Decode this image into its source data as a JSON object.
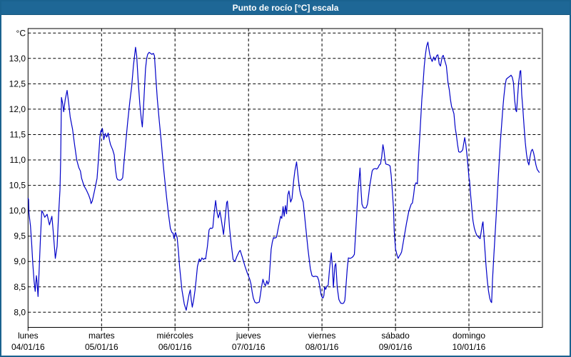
{
  "title": "Punto de rocío [°C] escala",
  "colors": {
    "titlebar_bg": "#1e6796",
    "window_border": "#1a628f",
    "line": "#0101c8",
    "grid": "#000000",
    "text": "#000000",
    "plot_bg": "#ffffff"
  },
  "y_axis": {
    "unit_label": "°C",
    "tick_labels": [
      "8,0",
      "8,5",
      "9,0",
      "9,5",
      "10,0",
      "10,5",
      "11,0",
      "11,5",
      "12,0",
      "12,5",
      "13,0"
    ],
    "tick_values": [
      8.0,
      8.5,
      9.0,
      9.5,
      10.0,
      10.5,
      11.0,
      11.5,
      12.0,
      12.5,
      13.0
    ]
  },
  "x_axis": {
    "days": [
      {
        "name": "lunes",
        "date": "04/01/16"
      },
      {
        "name": "martes",
        "date": "05/01/16"
      },
      {
        "name": "miércoles",
        "date": "06/01/16"
      },
      {
        "name": "jueves",
        "date": "07/01/16"
      },
      {
        "name": "viernes",
        "date": "08/01/16"
      },
      {
        "name": "sábado",
        "date": "09/01/16"
      },
      {
        "name": "domingo",
        "date": "10/01/16"
      }
    ]
  },
  "chart_data": {
    "type": "line",
    "title": "Punto de rocío [°C] escala",
    "series_name": "Punto de rocío",
    "x_unit": "días desde 04/01/16 00:00",
    "y_unit": "°C",
    "ylim": [
      8.0,
      13.5
    ],
    "xlim_days": [
      0,
      7
    ],
    "grid": "dashed",
    "legend": "none",
    "points": [
      [
        0.0,
        10.25
      ],
      [
        0.007,
        10.22
      ],
      [
        0.012,
        9.96
      ],
      [
        0.033,
        9.7
      ],
      [
        0.049,
        9.37
      ],
      [
        0.065,
        8.95
      ],
      [
        0.082,
        8.62
      ],
      [
        0.097,
        8.41
      ],
      [
        0.114,
        8.72
      ],
      [
        0.123,
        8.58
      ],
      [
        0.136,
        8.31
      ],
      [
        0.152,
        8.85
      ],
      [
        0.167,
        9.4
      ],
      [
        0.186,
        10.0
      ],
      [
        0.206,
        9.95
      ],
      [
        0.227,
        9.87
      ],
      [
        0.259,
        9.93
      ],
      [
        0.291,
        9.72
      ],
      [
        0.324,
        9.89
      ],
      [
        0.342,
        9.6
      ],
      [
        0.371,
        9.06
      ],
      [
        0.395,
        9.3
      ],
      [
        0.415,
        9.9
      ],
      [
        0.434,
        10.4
      ],
      [
        0.444,
        11.0
      ],
      [
        0.455,
        12.23
      ],
      [
        0.473,
        12.1
      ],
      [
        0.485,
        11.95
      ],
      [
        0.507,
        12.2
      ],
      [
        0.531,
        12.37
      ],
      [
        0.555,
        12.1
      ],
      [
        0.573,
        11.85
      ],
      [
        0.606,
        11.6
      ],
      [
        0.633,
        11.3
      ],
      [
        0.662,
        11.0
      ],
      [
        0.691,
        10.85
      ],
      [
        0.713,
        10.78
      ],
      [
        0.728,
        10.64
      ],
      [
        0.761,
        10.49
      ],
      [
        0.793,
        10.41
      ],
      [
        0.825,
        10.31
      ],
      [
        0.847,
        10.22
      ],
      [
        0.858,
        10.14
      ],
      [
        0.874,
        10.19
      ],
      [
        0.907,
        10.41
      ],
      [
        0.939,
        10.64
      ],
      [
        0.958,
        11.0
      ],
      [
        0.978,
        11.45
      ],
      [
        0.992,
        11.58
      ],
      [
        1.0,
        11.55
      ],
      [
        1.012,
        11.62
      ],
      [
        1.031,
        11.4
      ],
      [
        1.05,
        11.52
      ],
      [
        1.07,
        11.45
      ],
      [
        1.091,
        11.53
      ],
      [
        1.109,
        11.38
      ],
      [
        1.123,
        11.3
      ],
      [
        1.152,
        11.2
      ],
      [
        1.172,
        11.1
      ],
      [
        1.191,
        10.8
      ],
      [
        1.206,
        10.65
      ],
      [
        1.22,
        10.61
      ],
      [
        1.249,
        10.6
      ],
      [
        1.269,
        10.61
      ],
      [
        1.288,
        10.65
      ],
      [
        1.308,
        11.0
      ],
      [
        1.327,
        11.3
      ],
      [
        1.356,
        11.75
      ],
      [
        1.385,
        12.15
      ],
      [
        1.41,
        12.45
      ],
      [
        1.434,
        12.85
      ],
      [
        1.453,
        13.1
      ],
      [
        1.463,
        13.22
      ],
      [
        1.478,
        13.05
      ],
      [
        1.497,
        12.6
      ],
      [
        1.521,
        12.1
      ],
      [
        1.541,
        11.8
      ],
      [
        1.555,
        11.65
      ],
      [
        1.57,
        12.0
      ],
      [
        1.584,
        12.4
      ],
      [
        1.599,
        12.8
      ],
      [
        1.614,
        13.0
      ],
      [
        1.628,
        13.08
      ],
      [
        1.647,
        13.12
      ],
      [
        1.667,
        13.1
      ],
      [
        1.686,
        13.08
      ],
      [
        1.706,
        13.1
      ],
      [
        1.72,
        13.05
      ],
      [
        1.738,
        12.65
      ],
      [
        1.759,
        12.2
      ],
      [
        1.786,
        11.76
      ],
      [
        1.813,
        11.35
      ],
      [
        1.837,
        10.95
      ],
      [
        1.861,
        10.6
      ],
      [
        1.886,
        10.25
      ],
      [
        1.91,
        9.95
      ],
      [
        1.937,
        9.65
      ],
      [
        1.958,
        9.57
      ],
      [
        1.973,
        9.56
      ],
      [
        1.987,
        9.45
      ],
      [
        2.0,
        9.55
      ],
      [
        2.007,
        9.57
      ],
      [
        2.029,
        9.47
      ],
      [
        2.046,
        9.2
      ],
      [
        2.062,
        8.9
      ],
      [
        2.094,
        8.44
      ],
      [
        2.126,
        8.16
      ],
      [
        2.152,
        8.04
      ],
      [
        2.172,
        8.2
      ],
      [
        2.191,
        8.35
      ],
      [
        2.208,
        8.44
      ],
      [
        2.22,
        8.25
      ],
      [
        2.235,
        8.1
      ],
      [
        2.254,
        8.25
      ],
      [
        2.272,
        8.43
      ],
      [
        2.288,
        8.65
      ],
      [
        2.305,
        8.9
      ],
      [
        2.33,
        9.05
      ],
      [
        2.347,
        9.0
      ],
      [
        2.366,
        9.07
      ],
      [
        2.386,
        9.04
      ],
      [
        2.405,
        9.06
      ],
      [
        2.417,
        9.05
      ],
      [
        2.441,
        9.3
      ],
      [
        2.463,
        9.62
      ],
      [
        2.482,
        9.66
      ],
      [
        2.502,
        9.65
      ],
      [
        2.515,
        9.67
      ],
      [
        2.531,
        9.93
      ],
      [
        2.553,
        10.2
      ],
      [
        2.573,
        9.96
      ],
      [
        2.589,
        9.86
      ],
      [
        2.612,
        9.98
      ],
      [
        2.628,
        9.84
      ],
      [
        2.66,
        9.53
      ],
      [
        2.682,
        9.85
      ],
      [
        2.703,
        10.16
      ],
      [
        2.713,
        10.19
      ],
      [
        2.73,
        9.9
      ],
      [
        2.742,
        9.66
      ],
      [
        2.764,
        9.35
      ],
      [
        2.79,
        9.04
      ],
      [
        2.816,
        9.0
      ],
      [
        2.842,
        9.1
      ],
      [
        2.871,
        9.19
      ],
      [
        2.887,
        9.22
      ],
      [
        2.919,
        9.07
      ],
      [
        2.951,
        8.91
      ],
      [
        2.984,
        8.77
      ],
      [
        3.0,
        8.71
      ],
      [
        3.017,
        8.65
      ],
      [
        3.033,
        8.56
      ],
      [
        3.05,
        8.4
      ],
      [
        3.065,
        8.28
      ],
      [
        3.087,
        8.2
      ],
      [
        3.107,
        8.18
      ],
      [
        3.128,
        8.19
      ],
      [
        3.146,
        8.2
      ],
      [
        3.162,
        8.35
      ],
      [
        3.177,
        8.5
      ],
      [
        3.196,
        8.65
      ],
      [
        3.216,
        8.55
      ],
      [
        3.23,
        8.52
      ],
      [
        3.25,
        8.62
      ],
      [
        3.264,
        8.55
      ],
      [
        3.279,
        8.6
      ],
      [
        3.308,
        9.24
      ],
      [
        3.324,
        9.38
      ],
      [
        3.34,
        9.47
      ],
      [
        3.361,
        9.46
      ],
      [
        3.381,
        9.48
      ],
      [
        3.405,
        9.66
      ],
      [
        3.437,
        9.89
      ],
      [
        3.453,
        9.85
      ],
      [
        3.47,
        10.08
      ],
      [
        3.485,
        9.89
      ],
      [
        3.502,
        10.1
      ],
      [
        3.518,
        9.94
      ],
      [
        3.534,
        10.31
      ],
      [
        3.55,
        10.39
      ],
      [
        3.573,
        10.17
      ],
      [
        3.592,
        10.24
      ],
      [
        3.615,
        10.6
      ],
      [
        3.631,
        10.78
      ],
      [
        3.654,
        10.96
      ],
      [
        3.68,
        10.6
      ],
      [
        3.696,
        10.41
      ],
      [
        3.712,
        10.31
      ],
      [
        3.744,
        10.17
      ],
      [
        3.776,
        9.71
      ],
      [
        3.809,
        9.24
      ],
      [
        3.841,
        8.86
      ],
      [
        3.864,
        8.72
      ],
      [
        3.885,
        8.7
      ],
      [
        3.909,
        8.71
      ],
      [
        3.938,
        8.7
      ],
      [
        3.955,
        8.63
      ],
      [
        3.987,
        8.35
      ],
      [
        4.0,
        8.3
      ],
      [
        4.014,
        8.28
      ],
      [
        4.026,
        8.33
      ],
      [
        4.036,
        8.5
      ],
      [
        4.05,
        8.45
      ],
      [
        4.065,
        8.51
      ],
      [
        4.084,
        8.53
      ],
      [
        4.101,
        8.82
      ],
      [
        4.126,
        9.17
      ],
      [
        4.143,
        8.86
      ],
      [
        4.155,
        8.49
      ],
      [
        4.175,
        8.91
      ],
      [
        4.188,
        8.96
      ],
      [
        4.208,
        8.49
      ],
      [
        4.23,
        8.25
      ],
      [
        4.254,
        8.18
      ],
      [
        4.279,
        8.17
      ],
      [
        4.295,
        8.18
      ],
      [
        4.311,
        8.23
      ],
      [
        4.327,
        8.53
      ],
      [
        4.344,
        8.86
      ],
      [
        4.359,
        9.07
      ],
      [
        4.385,
        9.06
      ],
      [
        4.41,
        9.08
      ],
      [
        4.424,
        9.1
      ],
      [
        4.441,
        9.14
      ],
      [
        4.456,
        9.52
      ],
      [
        4.473,
        9.94
      ],
      [
        4.489,
        10.36
      ],
      [
        4.505,
        10.62
      ],
      [
        4.517,
        10.84
      ],
      [
        4.531,
        10.41
      ],
      [
        4.544,
        10.13
      ],
      [
        4.563,
        10.06
      ],
      [
        4.584,
        10.05
      ],
      [
        4.602,
        10.06
      ],
      [
        4.618,
        10.13
      ],
      [
        4.635,
        10.31
      ],
      [
        4.65,
        10.5
      ],
      [
        4.667,
        10.64
      ],
      [
        4.683,
        10.78
      ],
      [
        4.699,
        10.82
      ],
      [
        4.725,
        10.83
      ],
      [
        4.745,
        10.82
      ],
      [
        4.764,
        10.85
      ],
      [
        4.78,
        10.9
      ],
      [
        4.796,
        10.92
      ],
      [
        4.813,
        11.06
      ],
      [
        4.829,
        11.3
      ],
      [
        4.842,
        11.2
      ],
      [
        4.854,
        11.04
      ],
      [
        4.868,
        10.92
      ],
      [
        4.89,
        10.91
      ],
      [
        4.91,
        10.9
      ],
      [
        4.926,
        10.88
      ],
      [
        4.942,
        10.69
      ],
      [
        4.958,
        10.36
      ],
      [
        4.973,
        10.05
      ],
      [
        4.983,
        9.6
      ],
      [
        5.0,
        9.25
      ],
      [
        5.014,
        9.17
      ],
      [
        5.026,
        9.1
      ],
      [
        5.036,
        9.06
      ],
      [
        5.05,
        9.1
      ],
      [
        5.068,
        9.14
      ],
      [
        5.084,
        9.19
      ],
      [
        5.117,
        9.47
      ],
      [
        5.15,
        9.75
      ],
      [
        5.182,
        9.99
      ],
      [
        5.214,
        10.13
      ],
      [
        5.23,
        10.15
      ],
      [
        5.247,
        10.31
      ],
      [
        5.262,
        10.5
      ],
      [
        5.279,
        10.55
      ],
      [
        5.298,
        10.53
      ],
      [
        5.311,
        10.97
      ],
      [
        5.327,
        11.39
      ],
      [
        5.344,
        11.81
      ],
      [
        5.359,
        12.19
      ],
      [
        5.376,
        12.52
      ],
      [
        5.392,
        12.85
      ],
      [
        5.408,
        13.08
      ],
      [
        5.424,
        13.24
      ],
      [
        5.441,
        13.32
      ],
      [
        5.453,
        13.2
      ],
      [
        5.466,
        13.08
      ],
      [
        5.48,
        13.01
      ],
      [
        5.499,
        12.94
      ],
      [
        5.521,
        13.03
      ],
      [
        5.538,
        12.96
      ],
      [
        5.563,
        13.06
      ],
      [
        5.577,
        13.07
      ],
      [
        5.596,
        12.89
      ],
      [
        5.612,
        12.85
      ],
      [
        5.635,
        13.03
      ],
      [
        5.65,
        13.06
      ],
      [
        5.674,
        12.94
      ],
      [
        5.693,
        12.85
      ],
      [
        5.715,
        12.52
      ],
      [
        5.732,
        12.38
      ],
      [
        5.748,
        12.19
      ],
      [
        5.764,
        12.05
      ],
      [
        5.781,
        11.98
      ],
      [
        5.796,
        11.91
      ],
      [
        5.813,
        11.63
      ],
      [
        5.829,
        11.49
      ],
      [
        5.845,
        11.3
      ],
      [
        5.861,
        11.16
      ],
      [
        5.881,
        11.15
      ],
      [
        5.9,
        11.17
      ],
      [
        5.915,
        11.2
      ],
      [
        5.926,
        11.3
      ],
      [
        5.942,
        11.44
      ],
      [
        5.958,
        11.3
      ],
      [
        5.975,
        11.06
      ],
      [
        5.99,
        10.83
      ],
      [
        6.0,
        10.65
      ],
      [
        6.007,
        10.6
      ],
      [
        6.023,
        10.31
      ],
      [
        6.039,
        10.03
      ],
      [
        6.055,
        9.8
      ],
      [
        6.072,
        9.66
      ],
      [
        6.087,
        9.59
      ],
      [
        6.104,
        9.52
      ],
      [
        6.136,
        9.47
      ],
      [
        6.152,
        9.45
      ],
      [
        6.184,
        9.75
      ],
      [
        6.191,
        9.78
      ],
      [
        6.211,
        9.35
      ],
      [
        6.233,
        8.91
      ],
      [
        6.249,
        8.63
      ],
      [
        6.266,
        8.42
      ],
      [
        6.282,
        8.28
      ],
      [
        6.298,
        8.21
      ],
      [
        6.308,
        8.19
      ],
      [
        6.32,
        8.63
      ],
      [
        6.34,
        9.14
      ],
      [
        6.363,
        9.71
      ],
      [
        6.379,
        10.13
      ],
      [
        6.395,
        10.55
      ],
      [
        6.411,
        10.97
      ],
      [
        6.427,
        11.35
      ],
      [
        6.443,
        11.67
      ],
      [
        6.46,
        12.0
      ],
      [
        6.475,
        12.24
      ],
      [
        6.492,
        12.47
      ],
      [
        6.508,
        12.59
      ],
      [
        6.531,
        12.62
      ],
      [
        6.55,
        12.64
      ],
      [
        6.573,
        12.67
      ],
      [
        6.589,
        12.63
      ],
      [
        6.606,
        12.52
      ],
      [
        6.621,
        12.19
      ],
      [
        6.638,
        11.98
      ],
      [
        6.647,
        11.95
      ],
      [
        6.664,
        12.28
      ],
      [
        6.676,
        12.52
      ],
      [
        6.696,
        12.75
      ],
      [
        6.705,
        12.76
      ],
      [
        6.718,
        12.28
      ],
      [
        6.734,
        12.0
      ],
      [
        6.751,
        11.63
      ],
      [
        6.766,
        11.35
      ],
      [
        6.783,
        11.11
      ],
      [
        6.799,
        10.97
      ],
      [
        6.815,
        10.9
      ],
      [
        6.831,
        11.06
      ],
      [
        6.848,
        11.18
      ],
      [
        6.863,
        11.21
      ],
      [
        6.88,
        11.14
      ],
      [
        6.896,
        11.02
      ],
      [
        6.912,
        10.9
      ],
      [
        6.929,
        10.81
      ],
      [
        6.945,
        10.78
      ],
      [
        6.958,
        10.75
      ]
    ]
  }
}
